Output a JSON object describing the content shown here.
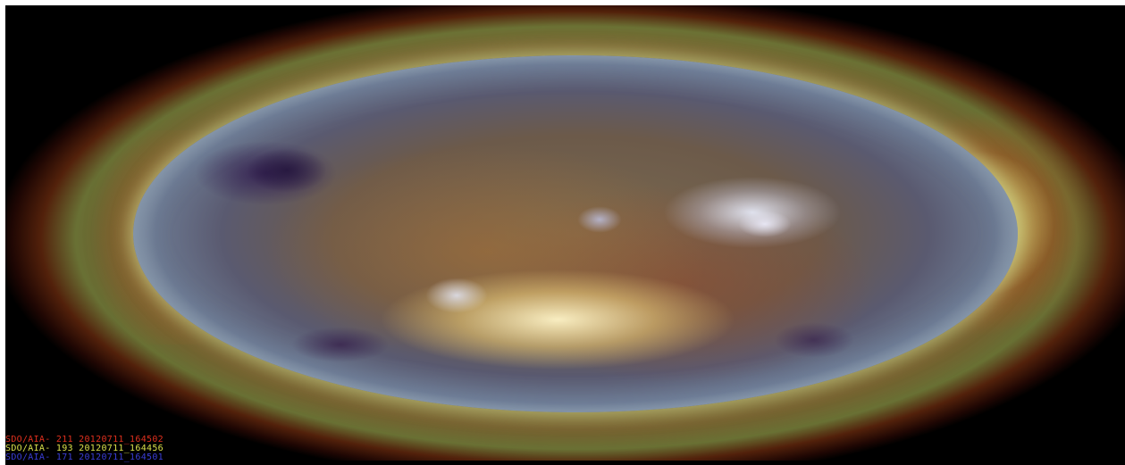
{
  "image": {
    "subject": "sun-disk",
    "captions": [
      {
        "text": "SDO/AIA- 211 20120711_164502",
        "color": "#e0301e"
      },
      {
        "text": "SDO/AIA- 193 20120711_164456",
        "color": "#d8e04a"
      },
      {
        "text": "SDO/AIA- 171 20120711_164501",
        "color": "#3a3ed8"
      }
    ]
  }
}
